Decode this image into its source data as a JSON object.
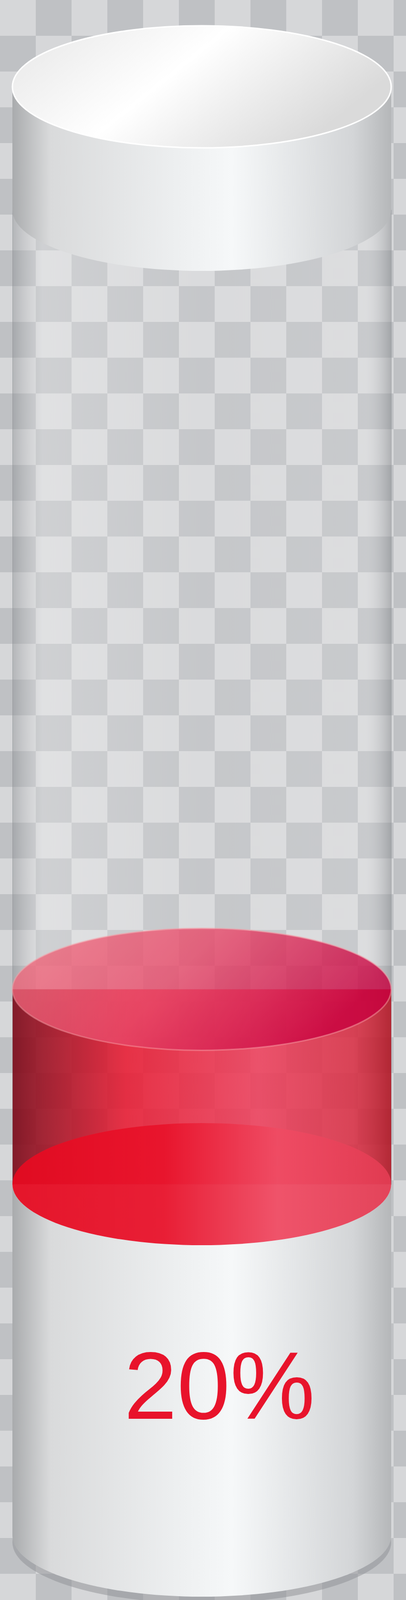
{
  "chart_data": {
    "type": "gauge",
    "values": [
      20
    ],
    "value_labels": [
      "20%"
    ],
    "ylim": [
      0,
      100
    ],
    "color": "#e8132b",
    "data_labels": true,
    "tick_labels": false
  }
}
